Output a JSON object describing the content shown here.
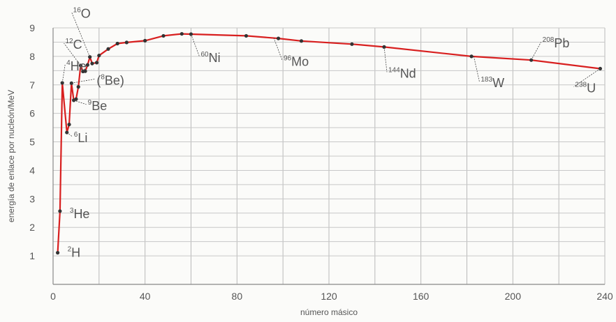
{
  "chart_data": {
    "type": "line",
    "xlabel": "número másico",
    "ylabel": "energía de enlace por nucleón/MeV",
    "xlim": [
      0,
      240
    ],
    "ylim": [
      0,
      9
    ],
    "x_ticks": [
      0,
      40,
      80,
      120,
      160,
      200,
      240
    ],
    "y_ticks": [
      1,
      2,
      3,
      4,
      5,
      6,
      7,
      8,
      9
    ],
    "grid": true,
    "series": [
      {
        "color": "#d81f1f",
        "points": [
          {
            "x": 2,
            "y": 1.11
          },
          {
            "x": 3,
            "y": 2.57
          },
          {
            "x": 4,
            "y": 7.07
          },
          {
            "x": 6,
            "y": 5.33
          },
          {
            "x": 7,
            "y": 5.61
          },
          {
            "x": 8,
            "y": 7.06
          },
          {
            "x": 9,
            "y": 6.46
          },
          {
            "x": 10,
            "y": 6.5
          },
          {
            "x": 11,
            "y": 6.93
          },
          {
            "x": 12,
            "y": 7.68
          },
          {
            "x": 13,
            "y": 7.47
          },
          {
            "x": 14,
            "y": 7.48
          },
          {
            "x": 15,
            "y": 7.7
          },
          {
            "x": 16,
            "y": 7.98
          },
          {
            "x": 17,
            "y": 7.75
          },
          {
            "x": 19,
            "y": 7.78
          },
          {
            "x": 20,
            "y": 8.03
          },
          {
            "x": 24,
            "y": 8.26
          },
          {
            "x": 28,
            "y": 8.45
          },
          {
            "x": 32,
            "y": 8.49
          },
          {
            "x": 40,
            "y": 8.55
          },
          {
            "x": 48,
            "y": 8.72
          },
          {
            "x": 56,
            "y": 8.79
          },
          {
            "x": 60,
            "y": 8.78
          },
          {
            "x": 84,
            "y": 8.72
          },
          {
            "x": 98,
            "y": 8.63
          },
          {
            "x": 108,
            "y": 8.54
          },
          {
            "x": 130,
            "y": 8.43
          },
          {
            "x": 144,
            "y": 8.33
          },
          {
            "x": 182,
            "y": 8.0
          },
          {
            "x": 208,
            "y": 7.87
          },
          {
            "x": 238,
            "y": 7.57
          }
        ]
      }
    ],
    "annotations": [
      {
        "mass": "2",
        "symbol": "H",
        "x": 2,
        "y": 1.11
      },
      {
        "mass": "3",
        "symbol": "He",
        "x": 3,
        "y": 2.57
      },
      {
        "mass": "4",
        "symbol": "He",
        "x": 4,
        "y": 7.07
      },
      {
        "mass": "6",
        "symbol": "Li",
        "x": 6,
        "y": 5.33
      },
      {
        "mass": "9",
        "symbol": "Be",
        "x": 9,
        "y": 6.46
      },
      {
        "mass": "8",
        "symbol": "Be)",
        "prefix": "(",
        "x": 8,
        "y": 7.06
      },
      {
        "mass": "12",
        "symbol": "C",
        "x": 12,
        "y": 7.68
      },
      {
        "mass": "16",
        "symbol": "O",
        "x": 16,
        "y": 7.98
      },
      {
        "mass": "60",
        "symbol": "Ni",
        "x": 60,
        "y": 8.78
      },
      {
        "mass": "96",
        "symbol": "Mo",
        "x": 96,
        "y": 8.65
      },
      {
        "mass": "144",
        "symbol": "Nd",
        "x": 144,
        "y": 8.33
      },
      {
        "mass": "183",
        "symbol": "W",
        "x": 183,
        "y": 8.0
      },
      {
        "mass": "208",
        "symbol": "Pb",
        "x": 208,
        "y": 7.87
      },
      {
        "mass": "238",
        "symbol": "U",
        "x": 238,
        "y": 7.57
      }
    ]
  }
}
